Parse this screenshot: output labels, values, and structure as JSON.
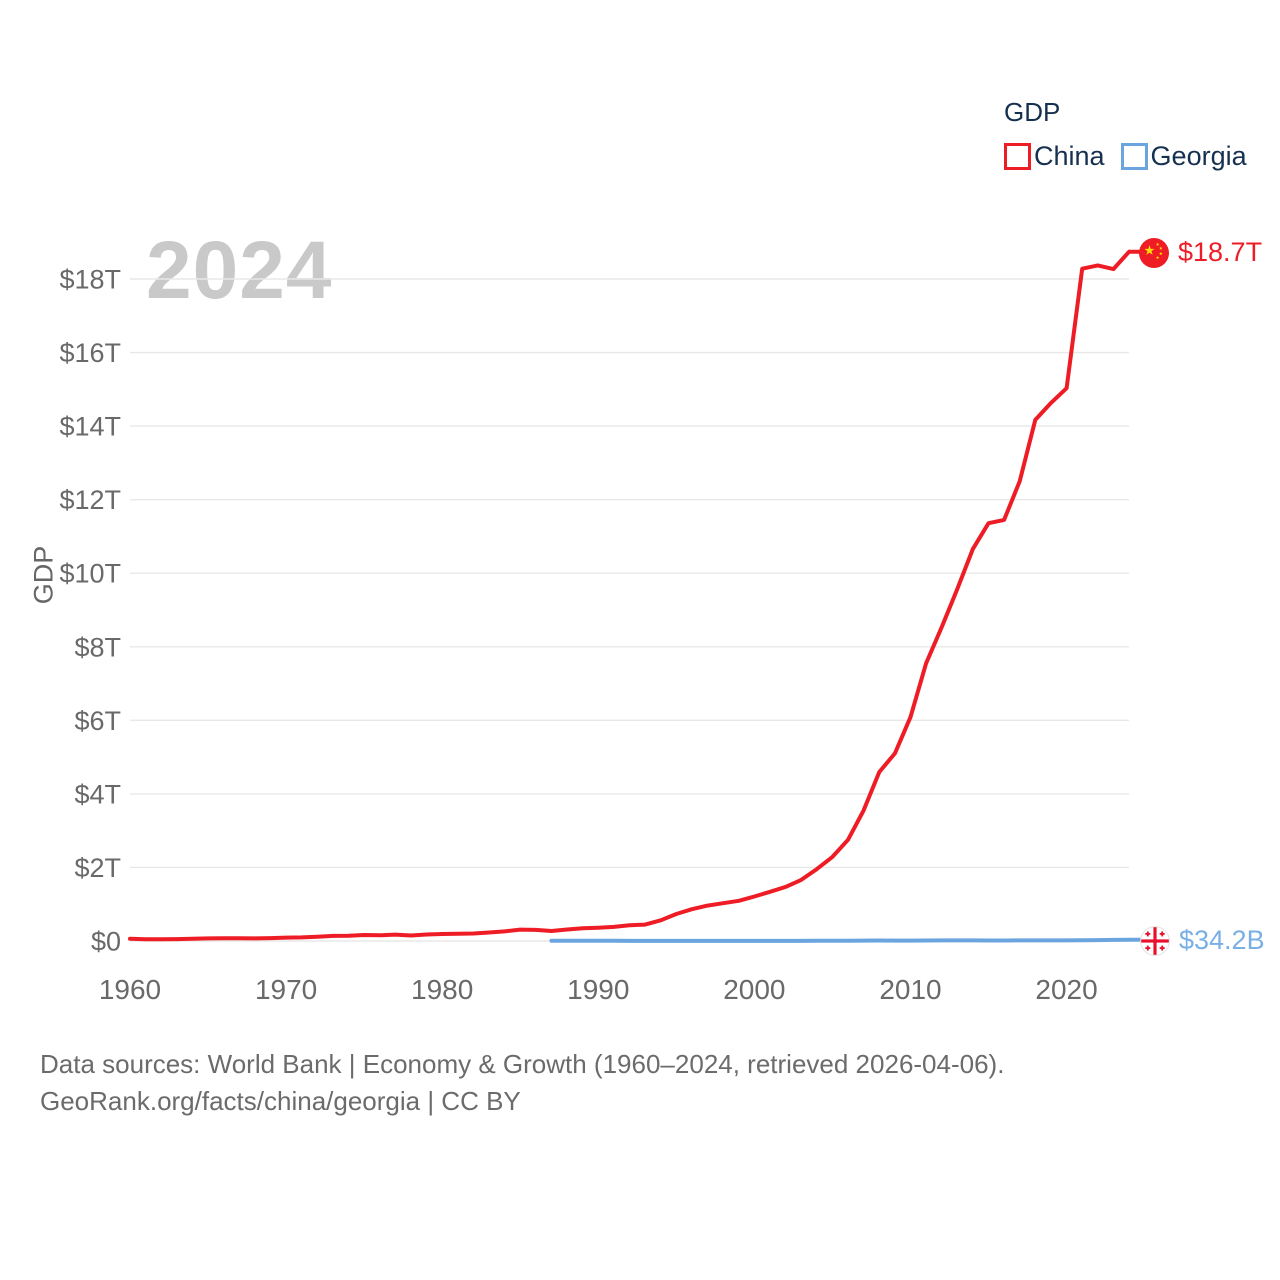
{
  "watermark": "2024",
  "legend": {
    "title": "GDP",
    "items": [
      {
        "label": "China",
        "color": "#ee1c25"
      },
      {
        "label": "Georgia",
        "color": "#6ba5e0"
      }
    ]
  },
  "end_labels": {
    "china": "$18.7T",
    "georgia": "$34.2B"
  },
  "icons": {
    "china_marker": "china-flag-icon",
    "georgia_marker": "georgia-flag-icon"
  },
  "colors": {
    "china": "#ee1c25",
    "georgia": "#6ba5e0",
    "georgia_label": "#79afe5",
    "legend_text": "#16304f",
    "axis_text": "#696969",
    "gridline": "#e8e8e8",
    "watermark": "#c9c9c9",
    "footer_text": "#6b6b6b"
  },
  "footer": {
    "line1": "Data sources: World Bank | Economy & Growth (1960–2024, retrieved 2026-04-06).",
    "line2": "GeoRank.org/facts/china/georgia | CC BY"
  },
  "chart_data": {
    "type": "line",
    "title": "",
    "xlabel": "",
    "ylabel": "GDP",
    "grid": "horizontal",
    "legend_position": "top-right",
    "x": {
      "start": 1960,
      "end": 2024,
      "step": 1
    },
    "x_ticks": [
      1960,
      1970,
      1980,
      1990,
      2000,
      2010,
      2020
    ],
    "y_ticks": [
      {
        "label": "$0",
        "value": 0
      },
      {
        "label": "$2T",
        "value": 2
      },
      {
        "label": "$4T",
        "value": 4
      },
      {
        "label": "$6T",
        "value": 6
      },
      {
        "label": "$8T",
        "value": 8
      },
      {
        "label": "$10T",
        "value": 10
      },
      {
        "label": "$12T",
        "value": 12
      },
      {
        "label": "$14T",
        "value": 14
      },
      {
        "label": "$16T",
        "value": 16
      },
      {
        "label": "$18T",
        "value": 18
      }
    ],
    "ylim_trillions": [
      0,
      19.2
    ],
    "series": [
      {
        "name": "China",
        "color": "#ee1c25",
        "unit": "trillion USD",
        "value_scale_to_trillions": 1,
        "end_label": "$18.7T",
        "values": [
          0.06,
          0.05,
          0.047,
          0.051,
          0.06,
          0.07,
          0.077,
          0.073,
          0.071,
          0.08,
          0.093,
          0.099,
          0.113,
          0.139,
          0.144,
          0.163,
          0.154,
          0.175,
          0.15,
          0.178,
          0.191,
          0.196,
          0.205,
          0.231,
          0.26,
          0.31,
          0.301,
          0.273,
          0.313,
          0.348,
          0.361,
          0.383,
          0.427,
          0.445,
          0.564,
          0.735,
          0.864,
          0.962,
          1.029,
          1.094,
          1.211,
          1.339,
          1.471,
          1.66,
          1.955,
          2.286,
          2.752,
          3.55,
          4.594,
          5.102,
          6.087,
          7.552,
          8.532,
          9.57,
          10.66,
          11.36,
          11.45,
          12.5,
          14.17,
          14.63,
          15.03,
          18.28,
          18.37,
          18.27,
          18.74
        ]
      },
      {
        "name": "Georgia",
        "color": "#6ba5e0",
        "unit": "billion USD",
        "value_scale_to_trillions": 0.001,
        "end_label": "$34.2B",
        "values": [
          null,
          null,
          null,
          null,
          null,
          null,
          null,
          null,
          null,
          null,
          null,
          null,
          null,
          null,
          null,
          null,
          null,
          null,
          null,
          null,
          null,
          null,
          null,
          null,
          null,
          null,
          null,
          8.5,
          9.1,
          9.4,
          7.8,
          6.3,
          3.7,
          2.7,
          2.4,
          2.7,
          3.1,
          3.5,
          3.6,
          2.8,
          3.1,
          3.2,
          3.4,
          4.0,
          5.1,
          6.4,
          7.8,
          10.2,
          12.8,
          10.8,
          11.6,
          14.4,
          15.8,
          16.1,
          16.5,
          14.0,
          14.4,
          15.1,
          16.2,
          17.5,
          15.8,
          18.6,
          24.6,
          30.5,
          34.2
        ]
      }
    ]
  }
}
